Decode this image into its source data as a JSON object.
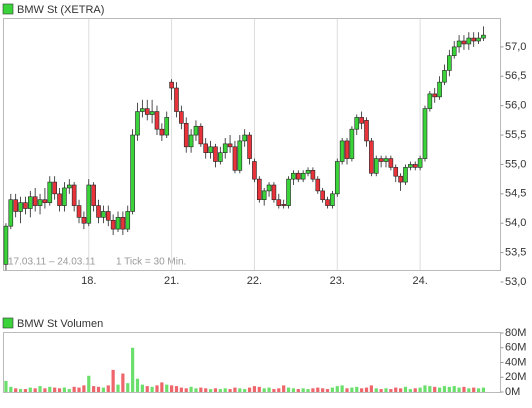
{
  "chart_data": [
    {
      "type": "candlestick",
      "title": "BMW St (XETRA)",
      "period": "17.03.11 – 24.03.11",
      "tick_note": "1 Tick = 30 Min.",
      "up_color": "#3ad43a",
      "down_color": "#e8333a",
      "grid": "x",
      "xlim": [
        -0.5,
        101.5
      ],
      "xticks": [
        {
          "value": 17,
          "label": "18."
        },
        {
          "value": 34,
          "label": "21."
        },
        {
          "value": 51,
          "label": "22."
        },
        {
          "value": 68,
          "label": "23."
        },
        {
          "value": 85,
          "label": "24."
        }
      ],
      "ylim": [
        53.0,
        57.5
      ],
      "yticks": [
        {
          "value": 53.0,
          "label": "53,0"
        },
        {
          "value": 53.5,
          "label": "53,5"
        },
        {
          "value": 54.0,
          "label": "54,0"
        },
        {
          "value": 54.5,
          "label": "54,5"
        },
        {
          "value": 55.0,
          "label": "55,0"
        },
        {
          "value": 55.5,
          "label": "55,5"
        },
        {
          "value": 56.0,
          "label": "56,0"
        },
        {
          "value": 56.5,
          "label": "56,5"
        },
        {
          "value": 57.0,
          "label": "57,0"
        }
      ],
      "values": [
        [
          53.3,
          54.0,
          53.2,
          53.95
        ],
        [
          53.95,
          54.5,
          53.9,
          54.4
        ],
        [
          54.4,
          54.5,
          54.1,
          54.2
        ],
        [
          54.2,
          54.45,
          54.0,
          54.35
        ],
        [
          54.35,
          54.45,
          54.15,
          54.25
        ],
        [
          54.25,
          54.55,
          54.1,
          54.45
        ],
        [
          54.45,
          54.6,
          54.2,
          54.3
        ],
        [
          54.3,
          54.5,
          54.15,
          54.4
        ],
        [
          54.4,
          54.6,
          54.25,
          54.35
        ],
        [
          54.35,
          54.8,
          54.3,
          54.7
        ],
        [
          54.7,
          54.8,
          54.4,
          54.5
        ],
        [
          54.5,
          54.6,
          54.2,
          54.3
        ],
        [
          54.3,
          54.7,
          54.2,
          54.6
        ],
        [
          54.6,
          54.75,
          54.5,
          54.65
        ],
        [
          54.65,
          54.7,
          54.2,
          54.3
        ],
        [
          54.3,
          54.4,
          54.0,
          54.1
        ],
        [
          54.1,
          54.2,
          53.9,
          54.0
        ],
        [
          54.0,
          54.75,
          53.95,
          54.65
        ],
        [
          54.65,
          54.7,
          54.2,
          54.3
        ],
        [
          54.3,
          54.4,
          54.0,
          54.1
        ],
        [
          54.1,
          54.3,
          54.0,
          54.2
        ],
        [
          54.2,
          54.3,
          53.95,
          54.05
        ],
        [
          54.05,
          54.15,
          53.8,
          53.9
        ],
        [
          53.9,
          54.2,
          53.85,
          54.1
        ],
        [
          54.1,
          54.2,
          53.8,
          53.9
        ],
        [
          53.9,
          54.3,
          53.85,
          54.2
        ],
        [
          54.2,
          55.6,
          54.15,
          55.5
        ],
        [
          55.5,
          56.05,
          55.4,
          55.9
        ],
        [
          55.9,
          56.1,
          55.8,
          55.95
        ],
        [
          55.95,
          56.1,
          55.75,
          55.85
        ],
        [
          55.85,
          56.1,
          55.7,
          55.9
        ],
        [
          55.9,
          56.0,
          55.5,
          55.6
        ],
        [
          55.6,
          55.7,
          55.4,
          55.5
        ],
        [
          55.5,
          55.9,
          55.45,
          55.8
        ],
        [
          56.4,
          56.45,
          56.1,
          56.3
        ],
        [
          56.3,
          56.4,
          55.8,
          55.9
        ],
        [
          55.9,
          56.0,
          55.6,
          55.7
        ],
        [
          55.7,
          55.8,
          55.2,
          55.3
        ],
        [
          55.3,
          55.6,
          55.2,
          55.5
        ],
        [
          55.5,
          55.75,
          55.4,
          55.65
        ],
        [
          55.65,
          55.7,
          55.3,
          55.35
        ],
        [
          55.35,
          55.45,
          55.1,
          55.2
        ],
        [
          55.2,
          55.4,
          55.1,
          55.3
        ],
        [
          55.3,
          55.35,
          54.95,
          55.05
        ],
        [
          55.05,
          55.3,
          55.0,
          55.2
        ],
        [
          55.2,
          55.45,
          55.1,
          55.35
        ],
        [
          55.35,
          55.5,
          55.2,
          55.3
        ],
        [
          55.3,
          55.4,
          54.85,
          54.9
        ],
        [
          54.9,
          55.5,
          54.85,
          55.4
        ],
        [
          55.4,
          55.6,
          55.3,
          55.5
        ],
        [
          55.5,
          55.55,
          55.0,
          55.1
        ],
        [
          55.05,
          55.1,
          54.7,
          54.75
        ],
        [
          54.75,
          54.8,
          54.35,
          54.4
        ],
        [
          54.4,
          54.6,
          54.3,
          54.55
        ],
        [
          54.55,
          54.7,
          54.45,
          54.65
        ],
        [
          54.65,
          54.7,
          54.35,
          54.4
        ],
        [
          54.4,
          54.5,
          54.25,
          54.3
        ],
        [
          54.32,
          54.4,
          54.25,
          54.3
        ],
        [
          54.3,
          54.8,
          54.25,
          54.75
        ],
        [
          54.75,
          54.9,
          54.65,
          54.85
        ],
        [
          54.85,
          54.9,
          54.7,
          54.75
        ],
        [
          54.75,
          54.9,
          54.7,
          54.85
        ],
        [
          54.85,
          54.95,
          54.8,
          54.9
        ],
        [
          54.9,
          54.95,
          54.7,
          54.75
        ],
        [
          54.75,
          54.8,
          54.5,
          54.55
        ],
        [
          54.55,
          54.6,
          54.35,
          54.4
        ],
        [
          54.4,
          54.45,
          54.25,
          54.3
        ],
        [
          54.3,
          54.55,
          54.25,
          54.5
        ],
        [
          54.5,
          55.1,
          54.45,
          55.05
        ],
        [
          55.05,
          55.45,
          55.0,
          55.4
        ],
        [
          55.4,
          55.45,
          55.0,
          55.1
        ],
        [
          55.1,
          55.65,
          55.05,
          55.6
        ],
        [
          55.6,
          55.85,
          55.5,
          55.8
        ],
        [
          55.8,
          55.9,
          55.6,
          55.7
        ],
        [
          55.75,
          55.8,
          55.3,
          55.4
        ],
        [
          55.4,
          55.45,
          54.8,
          54.85
        ],
        [
          54.85,
          55.15,
          54.8,
          55.1
        ],
        [
          55.1,
          55.15,
          54.95,
          55.05
        ],
        [
          55.05,
          55.15,
          54.95,
          55.1
        ],
        [
          55.1,
          55.15,
          54.9,
          54.95
        ],
        [
          54.95,
          55.0,
          54.7,
          54.8
        ],
        [
          54.8,
          54.85,
          54.55,
          54.7
        ],
        [
          54.7,
          55.0,
          54.65,
          54.95
        ],
        [
          54.95,
          55.05,
          54.9,
          55.0
        ],
        [
          55.0,
          55.05,
          54.9,
          54.95
        ],
        [
          54.95,
          55.15,
          54.9,
          55.1
        ],
        [
          55.1,
          56.0,
          55.05,
          55.95
        ],
        [
          55.95,
          56.25,
          55.9,
          56.2
        ],
        [
          56.2,
          56.3,
          56.05,
          56.15
        ],
        [
          56.15,
          56.5,
          56.1,
          56.4
        ],
        [
          56.4,
          56.7,
          56.35,
          56.6
        ],
        [
          56.6,
          56.95,
          56.5,
          56.85
        ],
        [
          56.85,
          57.1,
          56.8,
          57.0
        ],
        [
          57.0,
          57.2,
          56.9,
          57.1
        ],
        [
          57.1,
          57.2,
          56.95,
          57.05
        ],
        [
          57.05,
          57.25,
          56.95,
          57.15
        ],
        [
          57.15,
          57.25,
          57.0,
          57.1
        ],
        [
          57.1,
          57.25,
          57.05,
          57.15
        ],
        [
          57.15,
          57.35,
          57.1,
          57.2
        ]
      ]
    },
    {
      "type": "volume",
      "title": "BMW St Volumen",
      "ylim": [
        0,
        80
      ],
      "yticks": [
        {
          "value": 0,
          "label": "0M"
        },
        {
          "value": 20,
          "label": "20M"
        },
        {
          "value": 40,
          "label": "40M"
        },
        {
          "value": 60,
          "label": "60M"
        },
        {
          "value": 80,
          "label": "80M"
        }
      ],
      "values": [
        15,
        7,
        5,
        4,
        4,
        6,
        5,
        8,
        5,
        7,
        6,
        5,
        6,
        4,
        7,
        6,
        9,
        22,
        8,
        7,
        6,
        9,
        30,
        10,
        25,
        12,
        60,
        18,
        10,
        8,
        7,
        9,
        13,
        10,
        9,
        8,
        6,
        5,
        7,
        5,
        6,
        5,
        4,
        5,
        4,
        5,
        4,
        6,
        5,
        4,
        6,
        8,
        7,
        5,
        6,
        4,
        5,
        9,
        6,
        5,
        4,
        5,
        4,
        5,
        6,
        5,
        4,
        6,
        8,
        9,
        5,
        6,
        7,
        5,
        6,
        9,
        5,
        4,
        5,
        4,
        6,
        5,
        7,
        4,
        5,
        6,
        9,
        8,
        7,
        6,
        8,
        7,
        8,
        6,
        7,
        5,
        6,
        5,
        6
      ]
    }
  ]
}
